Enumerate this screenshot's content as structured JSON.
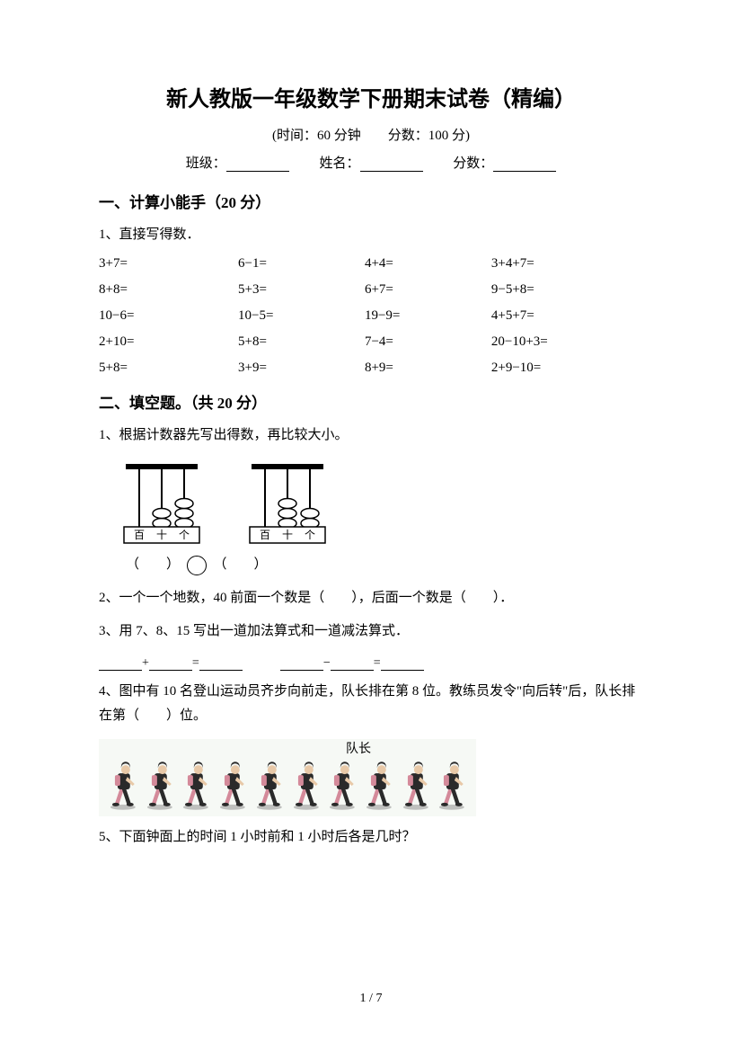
{
  "title": "新人教版一年级数学下册期末试卷（精编）",
  "subtitle": "(时间：60 分钟　　分数：100 分)",
  "info": {
    "class_label": "班级：",
    "name_label": "姓名：",
    "score_label": "分数："
  },
  "section1": {
    "title": "一、计算小能手（20 分）",
    "q1": "1、直接写得数．",
    "cells": [
      "3+7=",
      "6−1=",
      "4+4=",
      "3+4+7=",
      "8+8=",
      "5+3=",
      "6+7=",
      "9−5+8=",
      "10−6=",
      "10−5=",
      "19−9=",
      "4+5+7=",
      "2+10=",
      "5+8=",
      "7−4=",
      "20−10+3=",
      "5+8=",
      "3+9=",
      "8+9=",
      "2+9−10="
    ]
  },
  "section2": {
    "title": "二、填空题。（共 20 分）",
    "q1": "1、根据计数器先写出得数，再比较大小。",
    "compare": {
      "left": "（　　）",
      "right": "（　　）"
    },
    "q2": "2、一个一个地数，40 前面一个数是（　　），后面一个数是（　　）．",
    "q3": "3、用 7、8、15 写出一道加法算式和一道减法算式．",
    "q4": "4、图中有 10 名登山运动员齐步向前走，队长排在第 8 位。教练员发令\"向后转\"后，队长排在第（　　）位。",
    "walkers_label": "队长",
    "q5": "5、下面钟面上的时间 1 小时前和 1 小时后各是几时？"
  },
  "abacus": {
    "labels": [
      "百",
      "十",
      "个"
    ],
    "left_beads": [
      0,
      2,
      3
    ],
    "right_beads": [
      0,
      3,
      2
    ],
    "colors": {
      "frame": "#000000",
      "bead_fill": "#ffffff",
      "bead_stroke": "#000000",
      "label_bg": "#ffffff"
    }
  },
  "walkers": {
    "count": 10,
    "leader_index": 7,
    "bg_color": "#f6f9f5",
    "colors": {
      "dark": "#2a2a2a",
      "pink": "#d48a9a",
      "skin": "#e8c9a8",
      "shadow": "#888888"
    }
  },
  "page": {
    "current": "1",
    "total": "7",
    "sep": " / "
  }
}
